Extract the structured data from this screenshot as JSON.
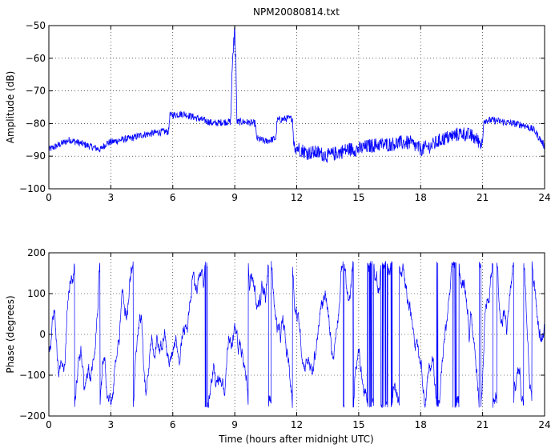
{
  "figure_title": "NPM20080814.txt",
  "colors": {
    "line": "#0000ff",
    "axes": "#000000",
    "grid": "#000000",
    "background": "#ffffff"
  },
  "chart_data": [
    {
      "type": "line",
      "title": "NPM20080814.txt",
      "xlabel": "",
      "ylabel": "Amplitude (dB)",
      "xlim": [
        0,
        24
      ],
      "ylim": [
        -100,
        -50
      ],
      "xticks": [
        0,
        3,
        6,
        9,
        12,
        15,
        18,
        21,
        24
      ],
      "yticks": [
        -100,
        -90,
        -80,
        -70,
        -60,
        -50
      ],
      "xtick_labels": [
        "0",
        "3",
        "6",
        "9",
        "12",
        "15",
        "18",
        "21",
        "24"
      ],
      "ytick_labels": [
        "−100",
        "−90",
        "−80",
        "−70",
        "−60",
        "−50"
      ],
      "grid": true,
      "series": [
        {
          "x": [
            0,
            0.5,
            1,
            1.5,
            2,
            2.5,
            2.8,
            3.5,
            4,
            4.5,
            5,
            5.5,
            5.8,
            5.85,
            6.5,
            7,
            7.5,
            8,
            8.5,
            8.8,
            8.9,
            9,
            9.05,
            9.1,
            9.5,
            10,
            10.05,
            10.5,
            11,
            11.05,
            11.5,
            11.8,
            11.85,
            12.5,
            13,
            13.5,
            14,
            14.5,
            15,
            15.5,
            16,
            16.5,
            17,
            17.5,
            18,
            18.5,
            19,
            19.5,
            20,
            20.5,
            21,
            21.05,
            21.5,
            22,
            22.5,
            23,
            23.5,
            24
          ],
          "y": [
            -88,
            -86.5,
            -85,
            -86,
            -87,
            -88,
            -86,
            -85,
            -84.5,
            -83.5,
            -83,
            -82.5,
            -82.5,
            -77.5,
            -77,
            -78,
            -79,
            -80,
            -79.5,
            -79.5,
            -60,
            -51,
            -60,
            -79.5,
            -79.5,
            -80,
            -84.5,
            -85.5,
            -84.5,
            -79,
            -78.5,
            -78.5,
            -86,
            -88,
            -88,
            -89,
            -88,
            -87,
            -87,
            -86,
            -85.5,
            -85.5,
            -85,
            -85,
            -87,
            -86,
            -84,
            -83,
            -82,
            -83,
            -85.5,
            -79,
            -79,
            -79.5,
            -80,
            -80.5,
            -82,
            -87
          ]
        }
      ]
    },
    {
      "type": "line",
      "title": "",
      "xlabel": "Time (hours after midnight UTC)",
      "ylabel": "Phase (degrees)",
      "xlim": [
        0,
        24
      ],
      "ylim": [
        -200,
        200
      ],
      "xticks": [
        0,
        3,
        6,
        9,
        12,
        15,
        18,
        21,
        24
      ],
      "yticks": [
        -200,
        -100,
        0,
        100,
        200
      ],
      "xtick_labels": [
        "0",
        "3",
        "6",
        "9",
        "12",
        "15",
        "18",
        "21",
        "24"
      ],
      "ytick_labels": [
        "−200",
        "−100",
        "0",
        "100",
        "200"
      ],
      "grid": true,
      "series": [
        {
          "y_range": [
            -180,
            180
          ],
          "note_values": "phase wraps repeatedly between -180 and 180 degrees across the full 0-24 h span"
        }
      ]
    }
  ]
}
